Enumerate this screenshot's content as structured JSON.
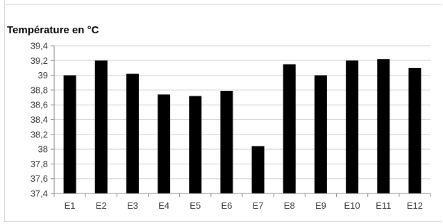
{
  "chart_data": {
    "type": "bar",
    "title": "",
    "ylabel": "Température en °C",
    "xlabel": "",
    "categories": [
      "E1",
      "E2",
      "E3",
      "E4",
      "E5",
      "E6",
      "E7",
      "E8",
      "E9",
      "E10",
      "E11",
      "E12"
    ],
    "values": [
      39.0,
      39.2,
      39.02,
      38.74,
      38.72,
      38.79,
      38.04,
      39.15,
      39.0,
      39.2,
      39.22,
      39.1
    ],
    "ylim": [
      37.4,
      39.4
    ],
    "yticks": [
      "37,4",
      "37,6",
      "37,8",
      "38",
      "38,2",
      "38,4",
      "38,6",
      "38,8",
      "39",
      "39,2",
      "39,4"
    ],
    "grid": true,
    "legend": "none",
    "bar_color": "#000000",
    "grid_color": "#d0d0d0"
  }
}
